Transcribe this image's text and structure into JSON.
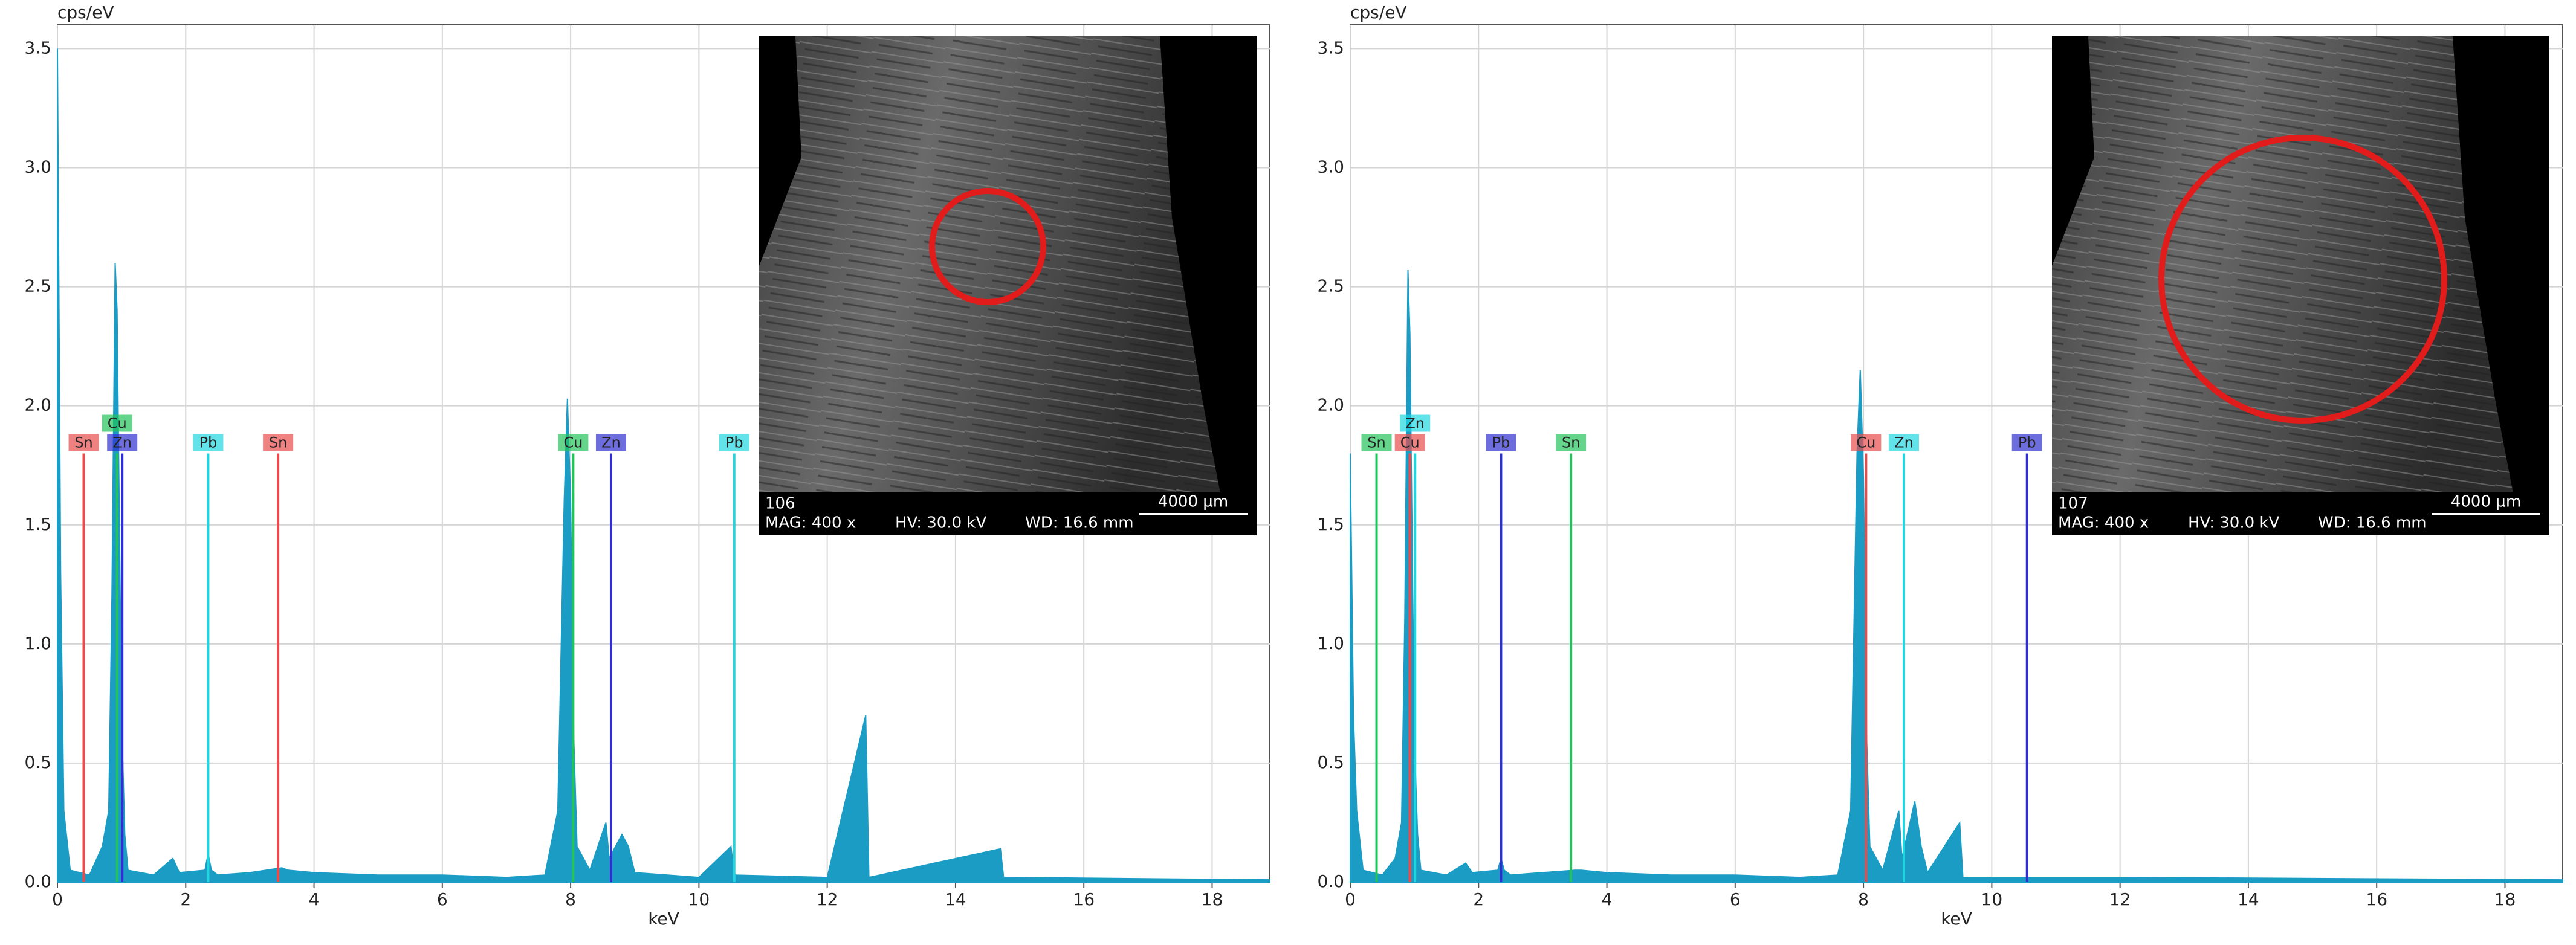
{
  "chart_data": [
    {
      "type": "area",
      "y_label": "cps/eV",
      "x_label": "keV",
      "color": "#1a9cc4",
      "grid": true,
      "xlim": [
        0,
        18.9
      ],
      "ylim": [
        0,
        3.6
      ],
      "xticks": [
        0,
        2,
        4,
        6,
        8,
        10,
        12,
        14,
        16,
        18
      ],
      "yticks": [
        {
          "value": 0,
          "label": "0.0"
        },
        0.5,
        {
          "value": 1,
          "label": "1.0"
        },
        1.5,
        {
          "value": 2,
          "label": "2.0"
        },
        2.5,
        {
          "value": 3,
          "label": "3.0"
        },
        3.5
      ],
      "x": [
        0,
        0.05,
        0.1,
        0.2,
        0.5,
        0.7,
        0.8,
        0.85,
        0.9,
        0.93,
        0.95,
        1.0,
        1.05,
        1.1,
        1.5,
        1.8,
        1.9,
        2.3,
        2.35,
        2.4,
        2.5,
        3.0,
        3.5,
        3.6,
        4.0,
        5,
        6,
        7,
        7.6,
        7.8,
        7.9,
        7.95,
        8.0,
        8.05,
        8.1,
        8.3,
        8.55,
        8.6,
        8.8,
        8.9,
        9.0,
        10,
        10.5,
        10.55,
        12,
        12.6,
        12.65,
        14.7,
        14.75,
        18.9
      ],
      "values": [
        3.5,
        1.3,
        0.3,
        0.05,
        0.03,
        0.15,
        0.3,
        1.2,
        2.6,
        2.4,
        1.9,
        0.7,
        0.2,
        0.05,
        0.03,
        0.1,
        0.04,
        0.05,
        0.12,
        0.05,
        0.03,
        0.04,
        0.06,
        0.05,
        0.04,
        0.03,
        0.03,
        0.02,
        0.03,
        0.3,
        1.6,
        2.03,
        1.6,
        0.6,
        0.15,
        0.05,
        0.25,
        0.1,
        0.2,
        0.15,
        0.04,
        0.02,
        0.15,
        0.03,
        0.02,
        0.7,
        0.02,
        0.14,
        0.02,
        0.01
      ],
      "element_lines": [
        {
          "label": "Sn",
          "x": 0.41,
          "height": 1.8,
          "color": "#e84c4c"
        },
        {
          "label": "Zn",
          "x": 1.01,
          "height": 1.8,
          "color": "#2f2fd0"
        },
        {
          "label": "Cu",
          "x": 0.93,
          "height": 1.8,
          "color": "#22c35a"
        },
        {
          "label": "Pb",
          "x": 2.35,
          "height": 1.8,
          "color": "#1fd6e0"
        },
        {
          "label": "Sn",
          "x": 3.44,
          "height": 1.8,
          "color": "#e84c4c"
        },
        {
          "label": "Cu",
          "x": 8.04,
          "height": 1.8,
          "color": "#22c35a"
        },
        {
          "label": "Zn",
          "x": 8.63,
          "height": 1.8,
          "color": "#2f2fd0"
        },
        {
          "label": "Pb",
          "x": 10.55,
          "height": 1.8,
          "color": "#1fd6e0"
        }
      ],
      "inset": {
        "id": "106",
        "scale": "4000 µm",
        "mag": "MAG: 400 x",
        "hv": "HV: 30.0 kV",
        "wd": "WD: 16.6 mm"
      }
    },
    {
      "type": "area",
      "y_label": "cps/eV",
      "x_label": "keV",
      "color": "#1a9cc4",
      "grid": true,
      "xlim": [
        0,
        18.9
      ],
      "ylim": [
        0,
        3.6
      ],
      "xticks": [
        0,
        2,
        4,
        6,
        8,
        10,
        12,
        14,
        16,
        18
      ],
      "yticks": [
        {
          "value": 0,
          "label": "0.0"
        },
        0.5,
        {
          "value": 1,
          "label": "1.0"
        },
        1.5,
        {
          "value": 2,
          "label": "2.0"
        },
        2.5,
        {
          "value": 3,
          "label": "3.0"
        },
        3.5
      ],
      "x": [
        0,
        0.05,
        0.1,
        0.2,
        0.5,
        0.7,
        0.8,
        0.85,
        0.9,
        0.93,
        0.95,
        1.0,
        1.05,
        1.1,
        1.5,
        1.8,
        1.9,
        2.3,
        2.35,
        2.4,
        2.5,
        3.0,
        3.5,
        3.6,
        4.0,
        5,
        6,
        7,
        7.6,
        7.8,
        7.9,
        7.95,
        8.0,
        8.05,
        8.1,
        8.3,
        8.55,
        8.6,
        8.8,
        8.9,
        9.0,
        9.5,
        9.55,
        12,
        18.9
      ],
      "values": [
        1.8,
        0.7,
        0.3,
        0.05,
        0.03,
        0.1,
        0.25,
        1.1,
        2.57,
        2.3,
        1.8,
        0.6,
        0.2,
        0.05,
        0.03,
        0.08,
        0.04,
        0.05,
        0.1,
        0.05,
        0.03,
        0.04,
        0.05,
        0.05,
        0.04,
        0.03,
        0.03,
        0.02,
        0.03,
        0.3,
        1.8,
        2.15,
        1.7,
        0.6,
        0.15,
        0.05,
        0.3,
        0.1,
        0.34,
        0.15,
        0.04,
        0.25,
        0.02,
        0.02,
        0.01
      ],
      "element_lines": [
        {
          "label": "Cu",
          "x": 0.93,
          "height": 1.8,
          "color": "#e84c4c"
        },
        {
          "label": "Sn",
          "x": 0.41,
          "height": 1.8,
          "color": "#22c35a"
        },
        {
          "label": "Zn",
          "x": 1.01,
          "height": 1.8,
          "color": "#1fd6e0"
        },
        {
          "label": "Pb",
          "x": 2.35,
          "height": 1.8,
          "color": "#2f2fd0"
        },
        {
          "label": "Sn",
          "x": 3.44,
          "height": 1.8,
          "color": "#22c35a"
        },
        {
          "label": "Cu",
          "x": 8.04,
          "height": 1.8,
          "color": "#e84c4c"
        },
        {
          "label": "Zn",
          "x": 8.63,
          "height": 1.8,
          "color": "#1fd6e0"
        },
        {
          "label": "Pb",
          "x": 10.55,
          "height": 1.8,
          "color": "#2f2fd0"
        }
      ],
      "inset": {
        "id": "107",
        "scale": "4000 µm",
        "mag": "MAG: 400 x",
        "hv": "HV: 30.0 kV",
        "wd": "WD: 16.6 mm"
      }
    }
  ]
}
